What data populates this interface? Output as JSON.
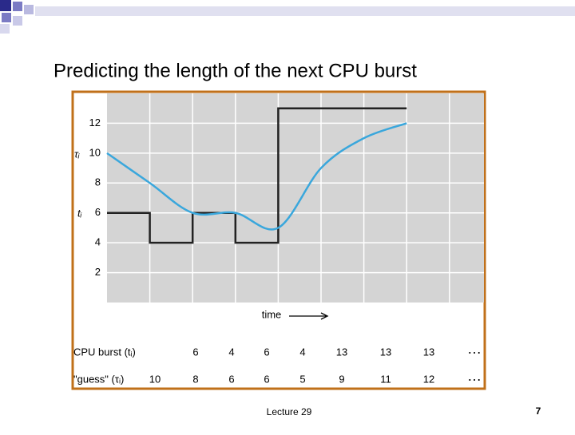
{
  "slide": {
    "title": "Predicting the length of the next CPU burst",
    "footer": "Lecture 29",
    "page": "7"
  },
  "chart_data": {
    "type": "line",
    "xlabel": "time",
    "xlim": [
      0,
      8.8
    ],
    "xticks": [
      1,
      2,
      3,
      4,
      5,
      6,
      7,
      8
    ],
    "ylim": [
      0,
      14
    ],
    "yticks": [
      2,
      4,
      6,
      8,
      10,
      12
    ],
    "grid": true,
    "series": [
      {
        "name": "CPU burst (tᵢ)",
        "axis_label": "tᵢ",
        "style": "step",
        "color": "#222222",
        "x": [
          0,
          1,
          2,
          3,
          4,
          5,
          6
        ],
        "values": [
          6,
          4,
          6,
          4,
          13,
          13,
          13
        ]
      },
      {
        "name": "\"guess\" (τᵢ)",
        "axis_label": "τᵢ",
        "style": "smooth",
        "color": "#3aa7dc",
        "x": [
          0,
          1,
          2,
          3,
          4,
          5,
          6,
          7
        ],
        "values": [
          10,
          8,
          6,
          6,
          5,
          9,
          11,
          12
        ]
      }
    ],
    "continuation": "…"
  }
}
